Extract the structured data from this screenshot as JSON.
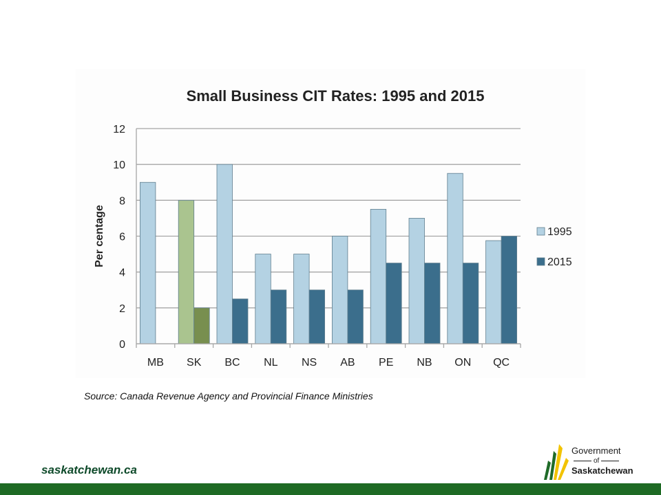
{
  "chart_data": {
    "type": "bar",
    "title": "Small Business CIT Rates: 1995 and 2015",
    "xlabel": "",
    "ylabel": "Per centage",
    "ylim": [
      0,
      12
    ],
    "yticks": [
      0,
      2,
      4,
      6,
      8,
      10,
      12
    ],
    "grid": true,
    "legend_position": "right",
    "categories": [
      "MB",
      "SK",
      "BC",
      "NL",
      "NS",
      "AB",
      "PE",
      "NB",
      "ON",
      "QC"
    ],
    "series": [
      {
        "name": "1995",
        "values": [
          9,
          8,
          10,
          5,
          5,
          6,
          7.5,
          7,
          9.5,
          5.75
        ],
        "color": "#b4d2e3"
      },
      {
        "name": "2015",
        "values": [
          0,
          2,
          2.5,
          3,
          3,
          3,
          4.5,
          4.5,
          4.5,
          6
        ],
        "color": "#3b6e8c"
      }
    ],
    "highlight": {
      "category": "SK",
      "colors": [
        "#aac48f",
        "#788f4f"
      ]
    }
  },
  "source_note": "Source:  Canada Revenue Agency and Provincial Finance Ministries",
  "footer": {
    "url": "saskatchewan.ca",
    "logo": {
      "line1": "Government",
      "line2": "of",
      "line3": "Saskatchewan"
    },
    "bar_color": "#1e6a24"
  }
}
